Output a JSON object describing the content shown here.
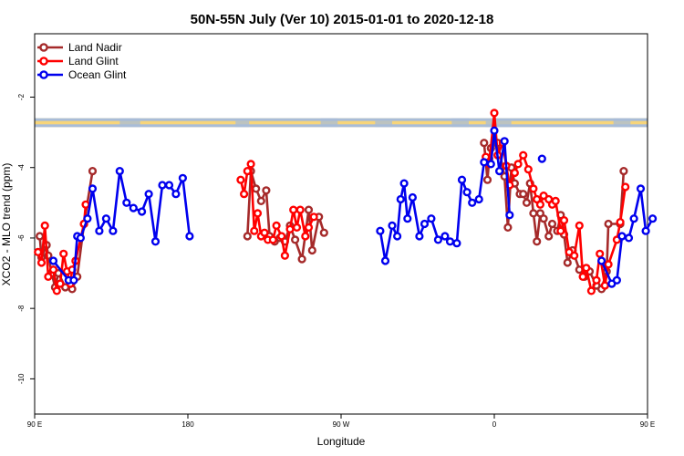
{
  "chart_data": {
    "type": "line",
    "title": "50N-55N July (Ver 10)   2015-01-01 to 2020-12-18",
    "xlabel": "Longitude",
    "ylabel": "XCO2 - MLO trend (ppm)",
    "xlim": [
      90,
      450
    ],
    "ylim": [
      -11,
      -0.2
    ],
    "x_ticks": [
      {
        "value": 90,
        "label": "90 E"
      },
      {
        "value": 180,
        "label": "180"
      },
      {
        "value": 270,
        "label": "90 W"
      },
      {
        "value": 360,
        "label": "0"
      },
      {
        "value": 450,
        "label": "90 E"
      },
      {
        "value": 540,
        "label": "180"
      }
    ],
    "y_ticks": [
      {
        "value": -2,
        "label": "-2"
      },
      {
        "value": -4,
        "label": "-4"
      },
      {
        "value": -6,
        "label": "-6"
      },
      {
        "value": -8,
        "label": "-8"
      },
      {
        "value": -10,
        "label": "-10"
      }
    ],
    "grid": false,
    "legend_position": "top-left",
    "land_mask_band": {
      "y_top": -2.6,
      "y_bottom": -2.85,
      "land_color": "#f7d57a",
      "ocean_color": "#a8bcd8"
    },
    "series": [
      {
        "name": "Land Nadir",
        "color": "#a52a2a",
        "segments": [
          [
            [
              93,
              -5.95
            ],
            [
              94,
              -6.55
            ],
            [
              97,
              -6.2
            ],
            [
              98,
              -6.5
            ],
            [
              100,
              -7.0
            ],
            [
              102,
              -7.4
            ],
            [
              104,
              -7.0
            ],
            [
              108,
              -7.4
            ],
            [
              112,
              -7.45
            ],
            [
              115,
              -7.1
            ],
            [
              119,
              -5.6
            ],
            [
              124,
              -4.1
            ]
          ],
          [
            [
              215,
              -5.95
            ],
            [
              217,
              -4.1
            ],
            [
              220,
              -4.6
            ],
            [
              223,
              -4.95
            ],
            [
              226,
              -4.65
            ],
            [
              228,
              -5.95
            ],
            [
              231,
              -6.1
            ],
            [
              234,
              -6.0
            ],
            [
              237,
              -6.1
            ],
            [
              240,
              -5.65
            ],
            [
              243,
              -6.05
            ],
            [
              247,
              -6.6
            ],
            [
              251,
              -5.2
            ],
            [
              253,
              -6.35
            ],
            [
              257,
              -5.4
            ],
            [
              260,
              -5.85
            ]
          ],
          [
            [
              354,
              -3.3
            ],
            [
              356,
              -4.35
            ],
            [
              357,
              -3.75
            ],
            [
              358,
              -3.45
            ],
            [
              362,
              -3.3
            ],
            [
              366,
              -4.25
            ],
            [
              368,
              -5.7
            ],
            [
              370,
              -4.0
            ],
            [
              372,
              -4.45
            ],
            [
              375,
              -4.75
            ],
            [
              377,
              -4.75
            ],
            [
              379,
              -5.0
            ],
            [
              381,
              -4.45
            ],
            [
              383,
              -5.3
            ],
            [
              385,
              -6.1
            ],
            [
              387,
              -5.3
            ],
            [
              389,
              -5.45
            ],
            [
              392,
              -5.95
            ],
            [
              394,
              -5.6
            ],
            [
              397,
              -5.8
            ],
            [
              399,
              -5.35
            ],
            [
              401,
              -5.9
            ],
            [
              403,
              -6.7
            ],
            [
              406,
              -6.35
            ],
            [
              410,
              -6.9
            ],
            [
              413,
              -7.1
            ],
            [
              416,
              -6.95
            ],
            [
              420,
              -7.35
            ],
            [
              423,
              -7.45
            ],
            [
              426,
              -6.95
            ],
            [
              427,
              -5.6
            ],
            [
              434,
              -5.6
            ],
            [
              436,
              -4.1
            ]
          ]
        ]
      },
      {
        "name": "Land Glint",
        "color": "#ff0000",
        "segments": [
          [
            [
              92,
              -6.4
            ],
            [
              94,
              -6.7
            ],
            [
              96,
              -5.65
            ],
            [
              98,
              -7.1
            ],
            [
              101,
              -6.9
            ],
            [
              103,
              -7.5
            ],
            [
              105,
              -7.3
            ],
            [
              107,
              -6.45
            ],
            [
              109,
              -6.95
            ],
            [
              111,
              -7.3
            ],
            [
              112,
              -6.9
            ],
            [
              114,
              -6.65
            ],
            [
              119,
              -5.6
            ],
            [
              120,
              -5.05
            ]
          ],
          [
            [
              211,
              -4.35
            ],
            [
              213,
              -4.75
            ],
            [
              215,
              -4.1
            ],
            [
              217,
              -3.9
            ],
            [
              219,
              -5.8
            ],
            [
              221,
              -5.3
            ],
            [
              223,
              -5.95
            ],
            [
              225,
              -5.85
            ],
            [
              227,
              -6.05
            ],
            [
              230,
              -6.05
            ],
            [
              232,
              -5.65
            ],
            [
              235,
              -5.95
            ],
            [
              237,
              -6.5
            ],
            [
              240,
              -5.75
            ],
            [
              242,
              -5.2
            ],
            [
              244,
              -5.7
            ],
            [
              246,
              -5.2
            ],
            [
              249,
              -5.95
            ],
            [
              251,
              -5.7
            ],
            [
              254,
              -5.4
            ]
          ],
          [
            [
              355,
              -3.7
            ],
            [
              357,
              -3.9
            ],
            [
              360,
              -2.45
            ],
            [
              362,
              -3.65
            ],
            [
              365,
              -3.3
            ],
            [
              367,
              -3.95
            ],
            [
              369,
              -4.5
            ],
            [
              372,
              -4.15
            ],
            [
              374,
              -3.9
            ],
            [
              377,
              -3.65
            ],
            [
              380,
              -4.05
            ],
            [
              383,
              -4.6
            ],
            [
              385,
              -4.9
            ],
            [
              387,
              -5.05
            ],
            [
              389,
              -4.8
            ],
            [
              392,
              -4.9
            ],
            [
              394,
              -5.05
            ],
            [
              396,
              -4.95
            ],
            [
              399,
              -5.8
            ],
            [
              401,
              -5.5
            ],
            [
              404,
              -6.4
            ],
            [
              407,
              -6.5
            ],
            [
              410,
              -5.65
            ],
            [
              412,
              -7.1
            ],
            [
              414,
              -6.85
            ],
            [
              417,
              -7.5
            ],
            [
              420,
              -7.2
            ],
            [
              422,
              -6.45
            ],
            [
              425,
              -7.35
            ],
            [
              427,
              -6.75
            ],
            [
              432,
              -6.05
            ],
            [
              434,
              -5.55
            ],
            [
              437,
              -4.55
            ]
          ]
        ]
      },
      {
        "name": "Ocean Glint",
        "color": "#0000ee",
        "segments": [
          [
            [
              101,
              -6.65
            ],
            [
              110,
              -7.2
            ],
            [
              113,
              -7.2
            ],
            [
              115,
              -5.95
            ],
            [
              117,
              -6.0
            ],
            [
              121,
              -5.45
            ],
            [
              124,
              -4.6
            ],
            [
              128,
              -5.8
            ],
            [
              132,
              -5.45
            ],
            [
              136,
              -5.8
            ],
            [
              140,
              -4.1
            ],
            [
              144,
              -5.0
            ],
            [
              148,
              -5.15
            ],
            [
              153,
              -5.25
            ],
            [
              157,
              -4.75
            ],
            [
              161,
              -6.1
            ],
            [
              165,
              -4.5
            ],
            [
              169,
              -4.5
            ],
            [
              173,
              -4.75
            ],
            [
              177,
              -4.3
            ],
            [
              181,
              -5.95
            ]
          ],
          [
            [
              233,
              -5.8
            ],
            [
              236,
              -6.65
            ],
            [
              240,
              -5.65
            ],
            [
              243,
              -5.95
            ],
            [
              245,
              -4.9
            ],
            [
              247,
              -4.45
            ],
            [
              249,
              -5.45
            ],
            [
              252,
              -4.85
            ],
            [
              256,
              -5.95
            ],
            [
              259,
              -5.6
            ],
            [
              263,
              -5.45
            ],
            [
              267,
              -6.05
            ],
            [
              271,
              -5.95
            ],
            [
              274,
              -6.1
            ],
            [
              278,
              -6.15
            ],
            [
              281,
              -4.35
            ],
            [
              284,
              -4.7
            ],
            [
              287,
              -5.0
            ],
            [
              291,
              -4.9
            ],
            [
              294,
              -3.85
            ],
            [
              298,
              -3.9
            ],
            [
              300,
              -2.95
            ],
            [
              303,
              -4.1
            ],
            [
              306,
              -3.25
            ],
            [
              309,
              -5.35
            ]
          ],
          [
            [
              388,
              -3.75
            ]
          ],
          [
            [
              423,
              -6.65
            ],
            [
              429,
              -7.3
            ],
            [
              432,
              -7.2
            ],
            [
              435,
              -5.95
            ],
            [
              439,
              -6.0
            ],
            [
              442,
              -5.45
            ],
            [
              446,
              -4.6
            ],
            [
              449,
              -5.8
            ],
            [
              453,
              -5.45
            ]
          ]
        ]
      }
    ],
    "series_x_offset": {
      "Ocean Glint_segment_1": 60
    }
  }
}
